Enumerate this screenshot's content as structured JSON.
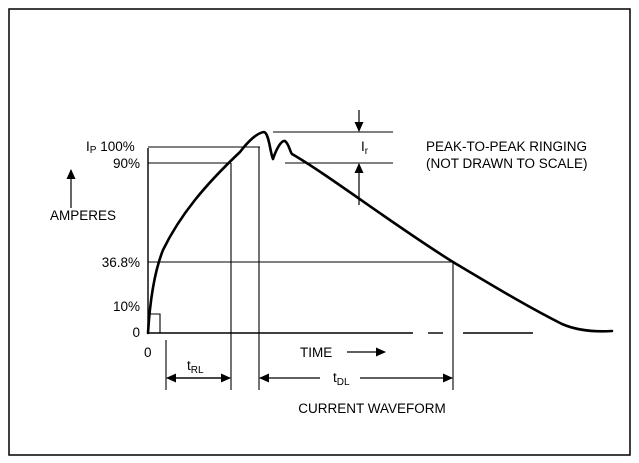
{
  "labels": {
    "ip_main": "I",
    "ip_sub": "P",
    "ip_pct": " 100%",
    "pct_90": "90%",
    "pct_36_8": "36.8%",
    "pct_10": "10%",
    "zero_y": "0",
    "zero_x": "0",
    "amperes": "AMPERES",
    "time": "TIME",
    "trl_main": "t",
    "trl_sub": "RL",
    "tdl_main": "t",
    "tdl_sub": "DL",
    "ir_main": "I",
    "ir_sub": "r",
    "ringing_line1": "PEAK-TO-PEAK RINGING",
    "ringing_line2": "(NOT DRAWN TO SCALE)",
    "caption": "CURRENT WAVEFORM"
  },
  "colors": {
    "stroke": "#000000",
    "background": "#ffffff"
  }
}
